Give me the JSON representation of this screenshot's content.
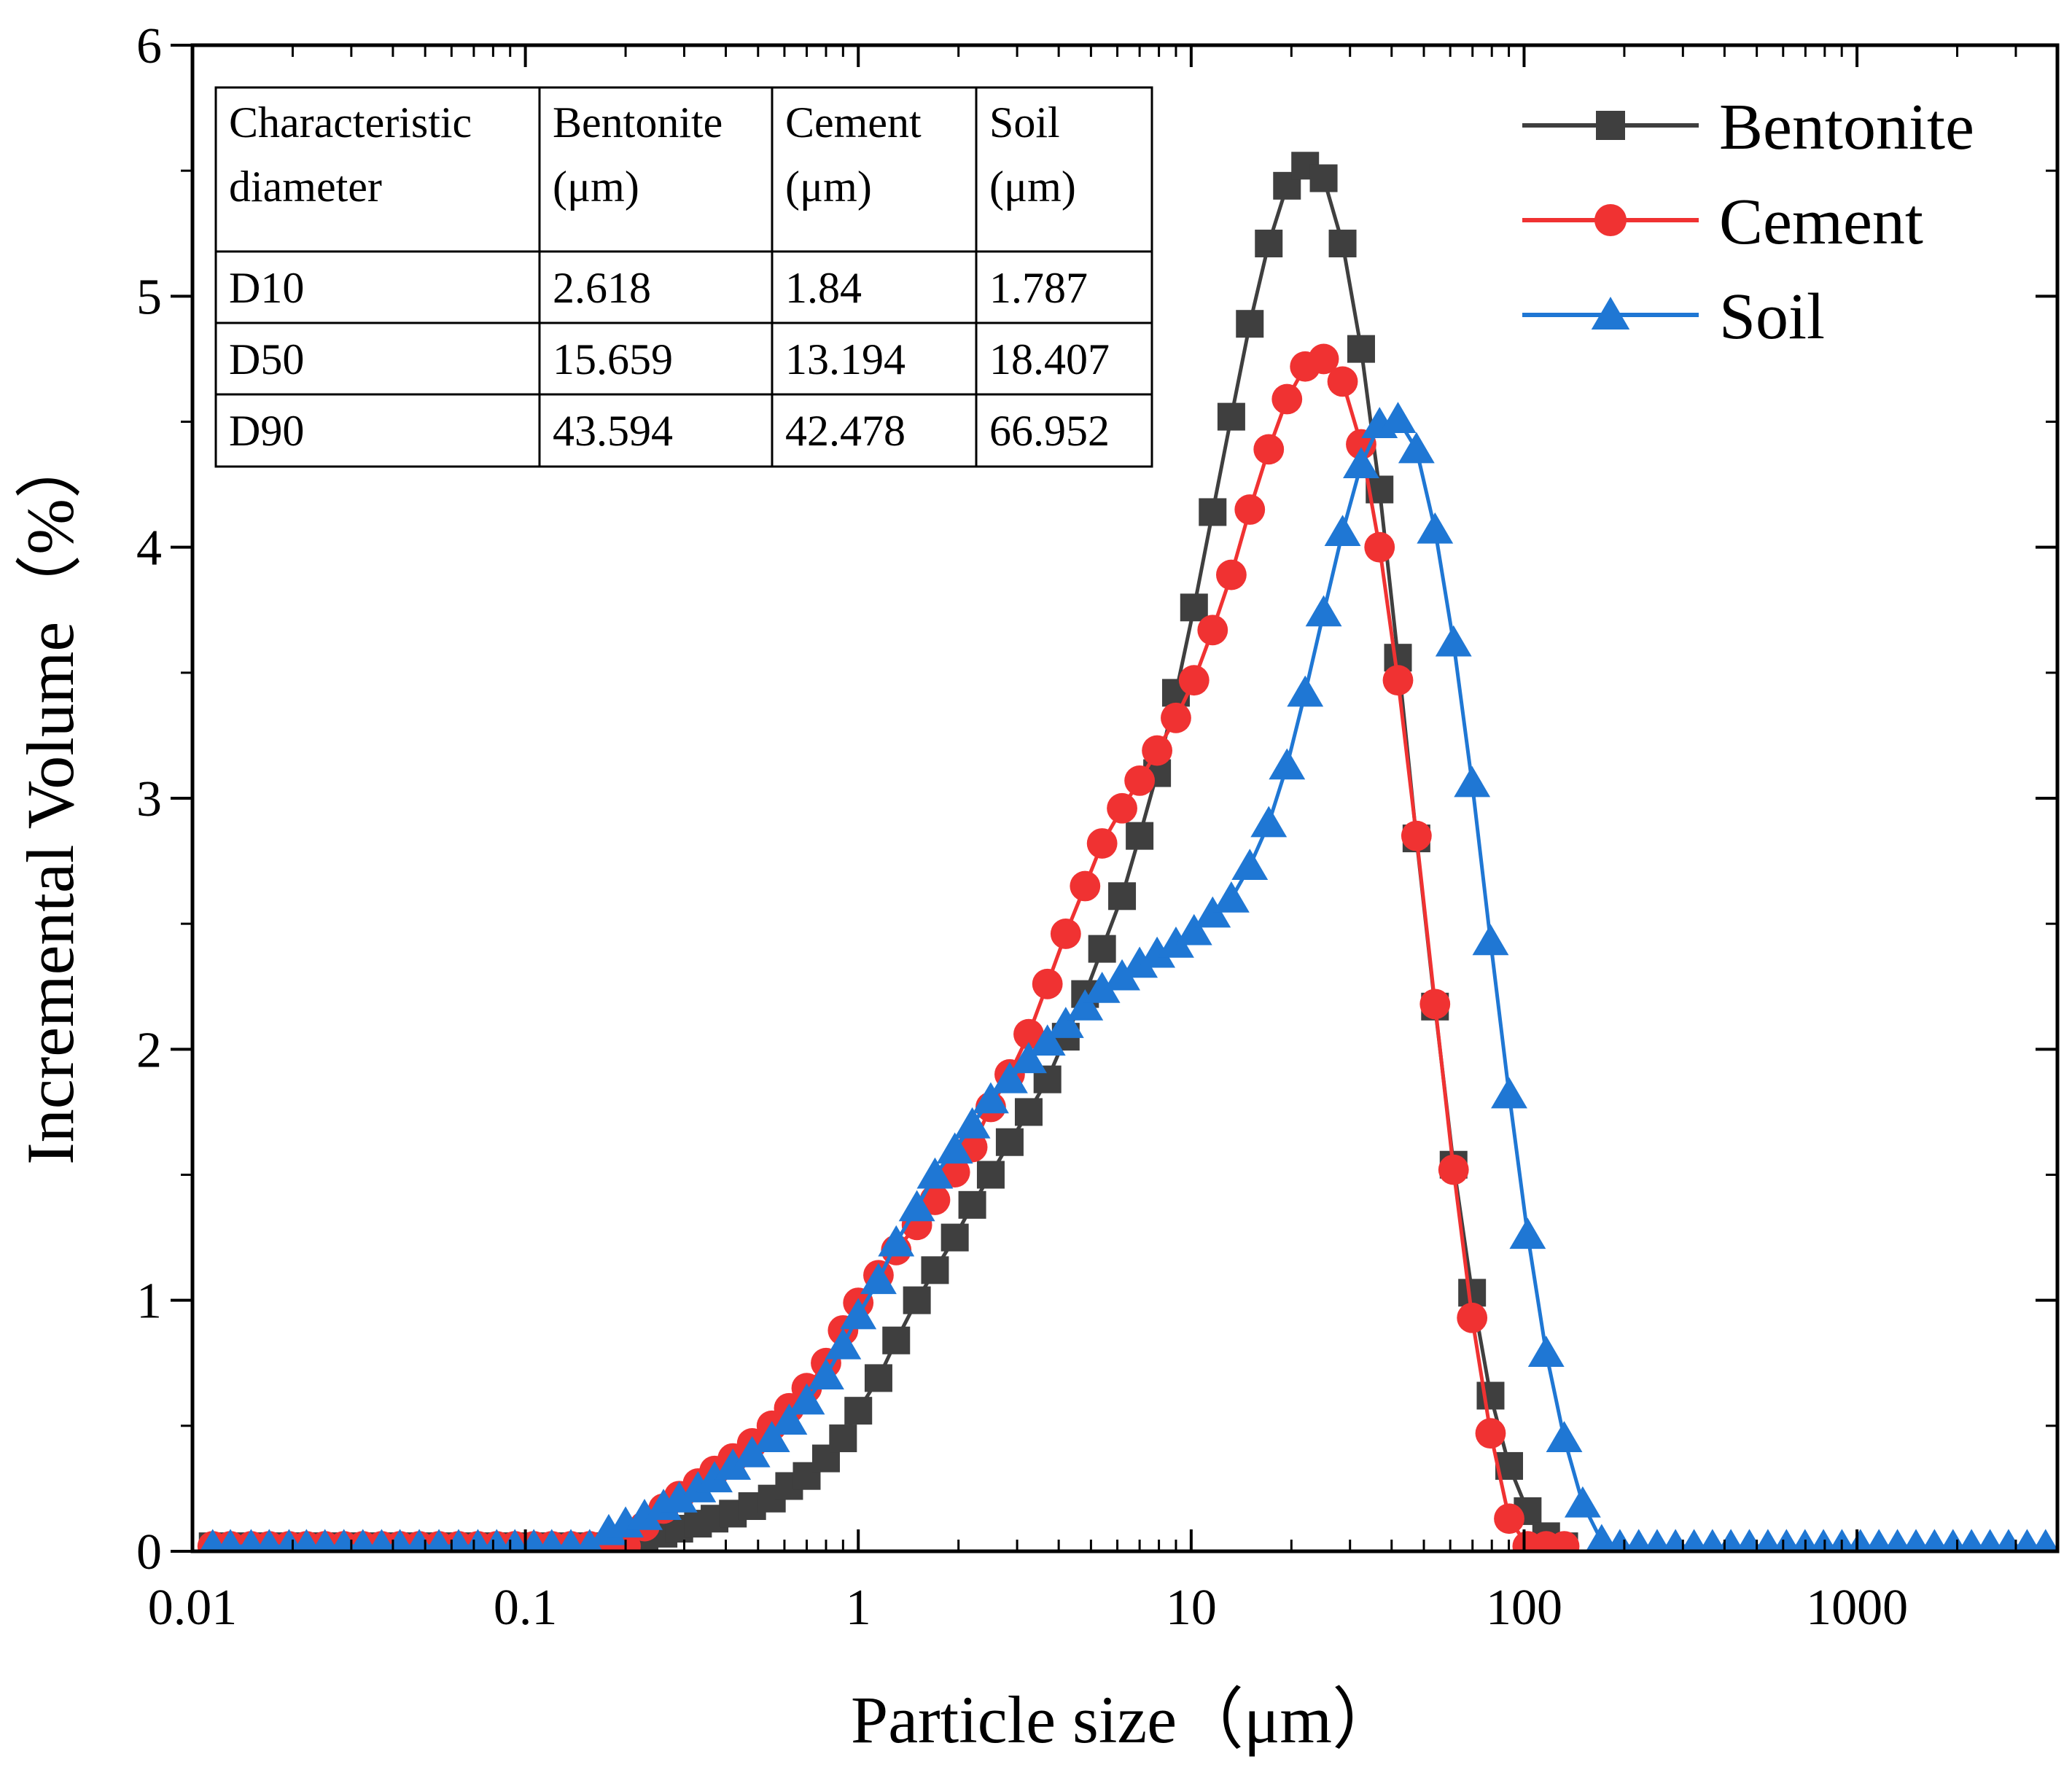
{
  "chart_data": {
    "type": "line",
    "xscale": "log",
    "xlabel": "Particle size（μm）",
    "ylabel": "Incremental Volume（%）",
    "xlim": [
      0.01,
      4000
    ],
    "ylim": [
      0,
      6
    ],
    "xticks": [
      {
        "value": 0.01,
        "label": "0.01"
      },
      {
        "value": 0.1,
        "label": "0.1"
      },
      {
        "value": 1,
        "label": "1"
      },
      {
        "value": 10,
        "label": "10"
      },
      {
        "value": 100,
        "label": "100"
      },
      {
        "value": 1000,
        "label": "1000"
      }
    ],
    "yticks": [
      {
        "value": 0,
        "label": "0"
      },
      {
        "value": 1,
        "label": "1"
      },
      {
        "value": 2,
        "label": "2"
      },
      {
        "value": 3,
        "label": "3"
      },
      {
        "value": 4,
        "label": "4"
      },
      {
        "value": 5,
        "label": "5"
      },
      {
        "value": 6,
        "label": "6"
      }
    ],
    "legend": {
      "position": "top-right"
    },
    "series": [
      {
        "name": "Bentonite",
        "color": "#3f3f3f",
        "marker": "square",
        "points": [
          [
            0.0115,
            0.02
          ],
          [
            0.013,
            0.02
          ],
          [
            0.015,
            0.02
          ],
          [
            0.017,
            0.02
          ],
          [
            0.0195,
            0.02
          ],
          [
            0.022,
            0.02
          ],
          [
            0.025,
            0.02
          ],
          [
            0.0285,
            0.02
          ],
          [
            0.0325,
            0.02
          ],
          [
            0.037,
            0.02
          ],
          [
            0.042,
            0.02
          ],
          [
            0.048,
            0.02
          ],
          [
            0.055,
            0.02
          ],
          [
            0.063,
            0.02
          ],
          [
            0.072,
            0.02
          ],
          [
            0.082,
            0.02
          ],
          [
            0.093,
            0.02
          ],
          [
            0.106,
            0.02
          ],
          [
            0.12,
            0.02
          ],
          [
            0.137,
            0.02
          ],
          [
            0.156,
            0.02
          ],
          [
            0.178,
            0.02
          ],
          [
            0.2,
            0.03
          ],
          [
            0.228,
            0.05
          ],
          [
            0.26,
            0.07
          ],
          [
            0.29,
            0.09
          ],
          [
            0.33,
            0.11
          ],
          [
            0.37,
            0.13
          ],
          [
            0.42,
            0.15
          ],
          [
            0.48,
            0.18
          ],
          [
            0.55,
            0.21
          ],
          [
            0.62,
            0.26
          ],
          [
            0.7,
            0.3
          ],
          [
            0.8,
            0.37
          ],
          [
            0.9,
            0.45
          ],
          [
            1.0,
            0.56
          ],
          [
            1.15,
            0.69
          ],
          [
            1.3,
            0.84
          ],
          [
            1.5,
            1.0
          ],
          [
            1.7,
            1.12
          ],
          [
            1.95,
            1.25
          ],
          [
            2.2,
            1.38
          ],
          [
            2.5,
            1.5
          ],
          [
            2.85,
            1.63
          ],
          [
            3.25,
            1.75
          ],
          [
            3.7,
            1.88
          ],
          [
            4.2,
            2.05
          ],
          [
            4.8,
            2.22
          ],
          [
            5.4,
            2.4
          ],
          [
            6.2,
            2.61
          ],
          [
            7.0,
            2.85
          ],
          [
            7.9,
            3.1
          ],
          [
            9.0,
            3.42
          ],
          [
            10.2,
            3.76
          ],
          [
            11.6,
            4.14
          ],
          [
            13.2,
            4.52
          ],
          [
            15.0,
            4.89
          ],
          [
            17.1,
            5.21
          ],
          [
            19.4,
            5.44
          ],
          [
            22.0,
            5.52
          ],
          [
            25.0,
            5.47
          ],
          [
            28.5,
            5.21
          ],
          [
            32.4,
            4.79
          ],
          [
            36.8,
            4.23
          ],
          [
            41.8,
            3.56
          ],
          [
            47.5,
            2.84
          ],
          [
            54.0,
            2.17
          ],
          [
            61.4,
            1.54
          ],
          [
            69.8,
            1.03
          ],
          [
            79.3,
            0.62
          ],
          [
            90.2,
            0.34
          ],
          [
            102.5,
            0.16
          ],
          [
            116.5,
            0.06
          ],
          [
            132,
            0.02
          ]
        ]
      },
      {
        "name": "Cement",
        "color": "#f03232",
        "marker": "circle",
        "points": [
          [
            0.0115,
            0.02
          ],
          [
            0.013,
            0.02
          ],
          [
            0.015,
            0.02
          ],
          [
            0.017,
            0.02
          ],
          [
            0.0195,
            0.02
          ],
          [
            0.022,
            0.02
          ],
          [
            0.025,
            0.02
          ],
          [
            0.0285,
            0.02
          ],
          [
            0.0325,
            0.02
          ],
          [
            0.037,
            0.02
          ],
          [
            0.042,
            0.02
          ],
          [
            0.048,
            0.02
          ],
          [
            0.055,
            0.02
          ],
          [
            0.063,
            0.02
          ],
          [
            0.072,
            0.02
          ],
          [
            0.082,
            0.02
          ],
          [
            0.093,
            0.02
          ],
          [
            0.106,
            0.02
          ],
          [
            0.12,
            0.02
          ],
          [
            0.137,
            0.02
          ],
          [
            0.156,
            0.02
          ],
          [
            0.178,
            0.02
          ],
          [
            0.2,
            0.02
          ],
          [
            0.228,
            0.1
          ],
          [
            0.26,
            0.17
          ],
          [
            0.29,
            0.22
          ],
          [
            0.33,
            0.27
          ],
          [
            0.37,
            0.32
          ],
          [
            0.42,
            0.37
          ],
          [
            0.48,
            0.43
          ],
          [
            0.55,
            0.5
          ],
          [
            0.62,
            0.57
          ],
          [
            0.7,
            0.65
          ],
          [
            0.8,
            0.75
          ],
          [
            0.9,
            0.88
          ],
          [
            1.0,
            0.99
          ],
          [
            1.15,
            1.1
          ],
          [
            1.3,
            1.2
          ],
          [
            1.5,
            1.3
          ],
          [
            1.7,
            1.4
          ],
          [
            1.95,
            1.51
          ],
          [
            2.2,
            1.61
          ],
          [
            2.5,
            1.77
          ],
          [
            2.85,
            1.9
          ],
          [
            3.25,
            2.06
          ],
          [
            3.7,
            2.26
          ],
          [
            4.2,
            2.46
          ],
          [
            4.8,
            2.65
          ],
          [
            5.4,
            2.82
          ],
          [
            6.2,
            2.96
          ],
          [
            7.0,
            3.07
          ],
          [
            7.9,
            3.19
          ],
          [
            9.0,
            3.32
          ],
          [
            10.2,
            3.47
          ],
          [
            11.6,
            3.67
          ],
          [
            13.2,
            3.89
          ],
          [
            15.0,
            4.15
          ],
          [
            17.1,
            4.39
          ],
          [
            19.4,
            4.59
          ],
          [
            22.0,
            4.72
          ],
          [
            25.0,
            4.75
          ],
          [
            28.5,
            4.66
          ],
          [
            32.4,
            4.41
          ],
          [
            36.8,
            4.0
          ],
          [
            41.8,
            3.47
          ],
          [
            47.5,
            2.85
          ],
          [
            54.0,
            2.18
          ],
          [
            61.4,
            1.52
          ],
          [
            69.8,
            0.93
          ],
          [
            79.3,
            0.47
          ],
          [
            90.2,
            0.13
          ],
          [
            102.5,
            0.02
          ],
          [
            116.5,
            0.02
          ],
          [
            132,
            0.02
          ]
        ]
      },
      {
        "name": "Soil",
        "color": "#1f77d4",
        "marker": "triangle",
        "points": [
          [
            0.0115,
            0.02
          ],
          [
            0.013,
            0.02
          ],
          [
            0.015,
            0.02
          ],
          [
            0.017,
            0.02
          ],
          [
            0.0195,
            0.02
          ],
          [
            0.022,
            0.02
          ],
          [
            0.025,
            0.02
          ],
          [
            0.0285,
            0.02
          ],
          [
            0.0325,
            0.02
          ],
          [
            0.037,
            0.02
          ],
          [
            0.042,
            0.02
          ],
          [
            0.048,
            0.02
          ],
          [
            0.055,
            0.02
          ],
          [
            0.063,
            0.02
          ],
          [
            0.072,
            0.02
          ],
          [
            0.082,
            0.02
          ],
          [
            0.093,
            0.02
          ],
          [
            0.106,
            0.02
          ],
          [
            0.12,
            0.02
          ],
          [
            0.137,
            0.02
          ],
          [
            0.156,
            0.02
          ],
          [
            0.178,
            0.08
          ],
          [
            0.2,
            0.11
          ],
          [
            0.228,
            0.14
          ],
          [
            0.26,
            0.18
          ],
          [
            0.29,
            0.21
          ],
          [
            0.33,
            0.25
          ],
          [
            0.37,
            0.29
          ],
          [
            0.42,
            0.34
          ],
          [
            0.48,
            0.39
          ],
          [
            0.55,
            0.45
          ],
          [
            0.62,
            0.52
          ],
          [
            0.7,
            0.6
          ],
          [
            0.8,
            0.7
          ],
          [
            0.9,
            0.82
          ],
          [
            1.0,
            0.94
          ],
          [
            1.15,
            1.08
          ],
          [
            1.3,
            1.23
          ],
          [
            1.5,
            1.37
          ],
          [
            1.7,
            1.5
          ],
          [
            1.95,
            1.6
          ],
          [
            2.2,
            1.7
          ],
          [
            2.5,
            1.8
          ],
          [
            2.85,
            1.88
          ],
          [
            3.25,
            1.96
          ],
          [
            3.7,
            2.03
          ],
          [
            4.2,
            2.1
          ],
          [
            4.8,
            2.17
          ],
          [
            5.4,
            2.24
          ],
          [
            6.2,
            2.29
          ],
          [
            7.0,
            2.34
          ],
          [
            7.9,
            2.38
          ],
          [
            9.0,
            2.42
          ],
          [
            10.2,
            2.47
          ],
          [
            11.6,
            2.54
          ],
          [
            13.2,
            2.6
          ],
          [
            15.0,
            2.73
          ],
          [
            17.1,
            2.9
          ],
          [
            19.4,
            3.13
          ],
          [
            22.0,
            3.42
          ],
          [
            25.0,
            3.74
          ],
          [
            28.5,
            4.06
          ],
          [
            32.4,
            4.33
          ],
          [
            36.8,
            4.49
          ],
          [
            41.8,
            4.51
          ],
          [
            47.5,
            4.39
          ],
          [
            54.0,
            4.07
          ],
          [
            61.4,
            3.62
          ],
          [
            69.8,
            3.06
          ],
          [
            79.3,
            2.43
          ],
          [
            90.2,
            1.82
          ],
          [
            102.5,
            1.26
          ],
          [
            116.5,
            0.79
          ],
          [
            132,
            0.45
          ],
          [
            150,
            0.19
          ],
          [
            171,
            0.04
          ],
          [
            194,
            0.02
          ],
          [
            221,
            0.02
          ],
          [
            251,
            0.02
          ],
          [
            285,
            0.02
          ],
          [
            324,
            0.02
          ],
          [
            368,
            0.02
          ],
          [
            418,
            0.02
          ],
          [
            475,
            0.02
          ],
          [
            540,
            0.02
          ],
          [
            614,
            0.02
          ],
          [
            698,
            0.02
          ],
          [
            793,
            0.02
          ],
          [
            901,
            0.02
          ],
          [
            1024,
            0.02
          ],
          [
            1164,
            0.02
          ],
          [
            1323,
            0.02
          ],
          [
            1504,
            0.02
          ],
          [
            1709,
            0.02
          ],
          [
            1943,
            0.02
          ],
          [
            2208,
            0.02
          ],
          [
            2510,
            0.02
          ],
          [
            2853,
            0.02
          ],
          [
            3243,
            0.02
          ],
          [
            3686,
            0.02
          ]
        ]
      }
    ],
    "table": {
      "headers": [
        [
          "Characteristic",
          "diameter"
        ],
        [
          "Bentonite",
          "(μm)"
        ],
        [
          "Cement",
          "(μm)"
        ],
        [
          "Soil",
          "(μm)"
        ]
      ],
      "rows": [
        [
          "D10",
          "2.618",
          "1.84",
          "1.787"
        ],
        [
          "D50",
          "15.659",
          "13.194",
          "18.407"
        ],
        [
          "D90",
          "43.594",
          "42.478",
          "66.952"
        ]
      ]
    }
  }
}
